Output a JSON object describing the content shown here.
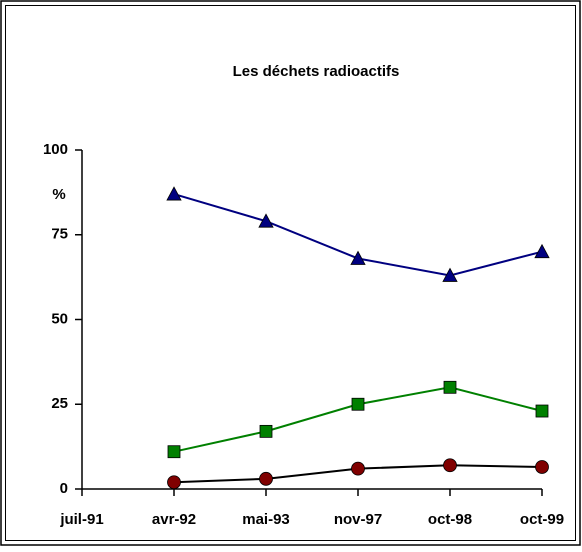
{
  "chart_data": {
    "type": "line",
    "title": "Les déchets radioactifs",
    "ylabel": "%",
    "categories": [
      "juil-91",
      "avr-92",
      "mai-93",
      "nov-97",
      "oct-98",
      "oct-99"
    ],
    "series": [
      {
        "color": "#000080",
        "line_color": "#000080",
        "marker": "triangle",
        "values": [
          null,
          87,
          79,
          68,
          63,
          70
        ]
      },
      {
        "color": "#008000",
        "line_color": "#008000",
        "marker": "square",
        "values": [
          null,
          11,
          17,
          25,
          30,
          23
        ]
      },
      {
        "color": "#800000",
        "line_color": "#000000",
        "marker": "circle",
        "values": [
          null,
          2,
          3,
          6,
          7,
          6.5
        ]
      }
    ],
    "ylim": [
      0,
      100
    ],
    "yticks": [
      0,
      25,
      50,
      75,
      100
    ],
    "grid": false
  }
}
